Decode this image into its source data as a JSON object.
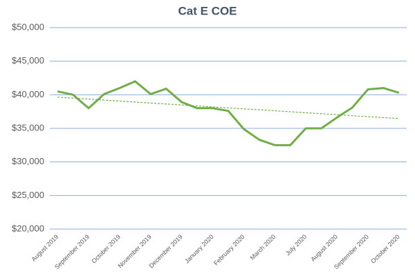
{
  "chart_data": {
    "type": "line",
    "title": "Cat E COE",
    "categories": [
      "August 2019",
      null,
      "September 2019",
      null,
      "October 2019",
      null,
      "November 2019",
      null,
      "December 2019",
      null,
      "January 2020",
      null,
      "February 2020",
      null,
      "March 2020",
      null,
      "July 2020",
      null,
      "August 2020",
      null,
      "September 2020",
      null,
      "October 2020"
    ],
    "series": [
      {
        "name": "Cat E COE",
        "color": "#70ad47",
        "values": [
          40500,
          40000,
          38000,
          40100,
          41000,
          42000,
          40100,
          40900,
          38900,
          38000,
          38000,
          37600,
          34900,
          33300,
          32500,
          32500,
          35000,
          35000,
          36600,
          38100,
          40800,
          41000,
          40300
        ]
      }
    ],
    "trendline": true,
    "ylim": [
      20000,
      50000
    ],
    "yticks": [
      {
        "value": 20000,
        "label": "$20,000"
      },
      {
        "value": 25000,
        "label": "$25,000"
      },
      {
        "value": 30000,
        "label": "$30,000"
      },
      {
        "value": 35000,
        "label": "$35,000"
      },
      {
        "value": 40000,
        "label": "$40,000"
      },
      {
        "value": 45000,
        "label": "$45,000"
      },
      {
        "value": 50000,
        "label": "$50,000"
      }
    ],
    "grid": true
  }
}
